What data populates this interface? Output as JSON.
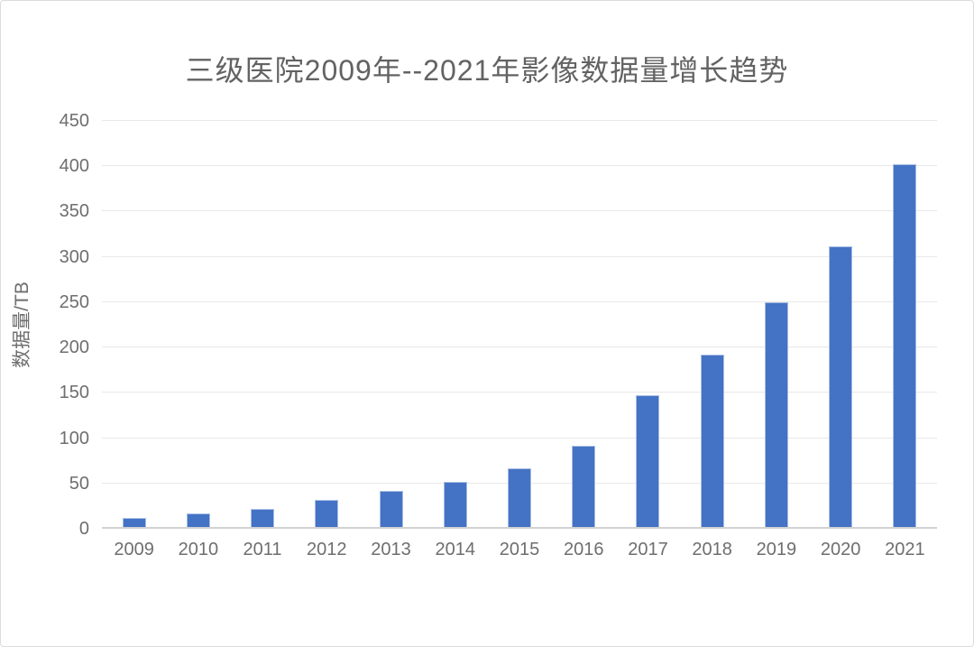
{
  "page": {
    "background": "#ffffff",
    "frame_color": "#dcdcdc"
  },
  "chart_data": {
    "type": "bar",
    "title": "三级医院2009年--2021年影像数据量增长趋势",
    "categories": [
      "2009",
      "2010",
      "2011",
      "2012",
      "2013",
      "2014",
      "2015",
      "2016",
      "2017",
      "2018",
      "2019",
      "2020",
      "2021"
    ],
    "values": [
      10,
      15,
      20,
      30,
      40,
      50,
      65,
      90,
      145,
      190,
      248,
      310,
      400
    ],
    "xlabel": "",
    "ylabel": "数据量/TB",
    "ylim": [
      0,
      450
    ],
    "yticks": [
      0,
      50,
      100,
      150,
      200,
      250,
      300,
      350,
      400,
      450
    ],
    "grid": true,
    "legend": "none",
    "colors": {
      "bar": "#4472C4",
      "bar_border": "#A7BEE4",
      "grid": "#E8E8E8",
      "axis_line": "#D2D2D2",
      "tick_text": "#6E6E6E",
      "title_text": "#636363"
    }
  }
}
